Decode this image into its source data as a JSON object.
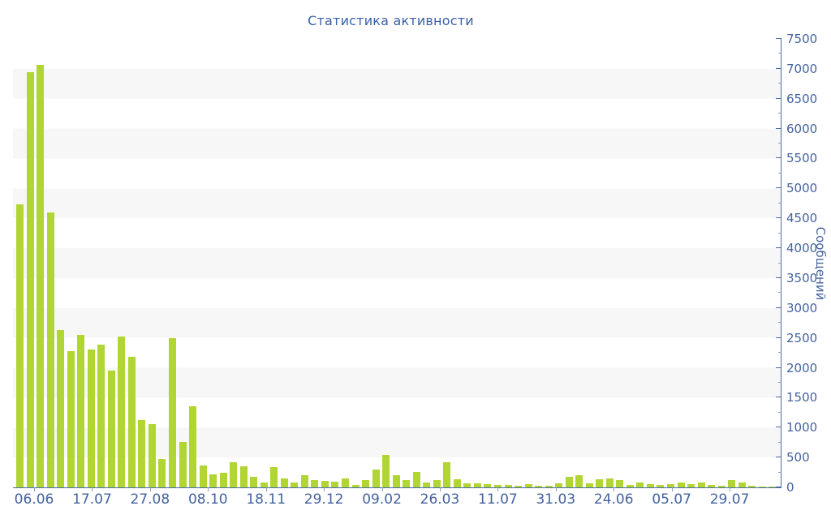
{
  "chart_data": {
    "type": "bar",
    "title": "Статистика активности",
    "xlabel": "",
    "ylabel": "Сообщений",
    "ylim": [
      0,
      7500
    ],
    "y_major_step": 500,
    "y_minor_step": 250,
    "grid": "striped-horizontal-bands",
    "legend_position": "none",
    "y_axis_side": "right",
    "y_tick_labels": [
      "0",
      "500",
      "1000",
      "1500",
      "2000",
      "2500",
      "3000",
      "3500",
      "4000",
      "4500",
      "5000",
      "5500",
      "6000",
      "6500",
      "7000",
      "7500"
    ],
    "x_tick_labels": [
      "06.06",
      "17.07",
      "27.08",
      "08.10",
      "18.11",
      "29.12",
      "09.02",
      "26.03",
      "11.07",
      "31.03",
      "24.06",
      "05.07",
      "29.07"
    ],
    "values": [
      4740,
      6950,
      7060,
      4600,
      2630,
      2280,
      2550,
      2300,
      2390,
      1950,
      2520,
      2180,
      1120,
      1060,
      470,
      2500,
      760,
      1360,
      370,
      220,
      240,
      425,
      355,
      175,
      85,
      345,
      150,
      75,
      200,
      120,
      105,
      90,
      150,
      45,
      120,
      300,
      540,
      210,
      120,
      255,
      85,
      120,
      415,
      130,
      65,
      65,
      50,
      40,
      40,
      25,
      50,
      30,
      30,
      65,
      175,
      200,
      65,
      130,
      155,
      120,
      40,
      85,
      50,
      40,
      60,
      85,
      50,
      80,
      40,
      25,
      120,
      75,
      25,
      15,
      15
    ],
    "colors": {
      "bar": "#b1d532",
      "axis_line": "#4a6aa5",
      "tick": "#8a9cc0",
      "label_text": "#44639f",
      "title_text": "#3a5fa9",
      "band_grey": "#f7f7f8",
      "band_white": "#ffffff",
      "background": "#ffffff"
    }
  }
}
